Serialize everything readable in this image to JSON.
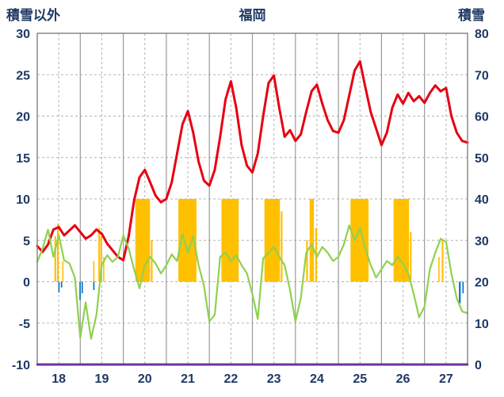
{
  "header": {
    "left_axis_title": "積雪以外",
    "station_title": "福岡",
    "right_axis_title": "積雪"
  },
  "chart_data": {
    "type": "line",
    "title": "福岡",
    "grid": true,
    "legend": "none",
    "left_axis": {
      "label": "積雪以外",
      "min": -10,
      "max": 30,
      "ticks": [
        30,
        25,
        20,
        15,
        10,
        5,
        0,
        -5,
        -10
      ]
    },
    "right_axis": {
      "label": "積雪",
      "min": 0,
      "max": 80,
      "ticks": [
        80,
        70,
        60,
        50,
        40,
        30,
        20,
        10,
        0
      ]
    },
    "x_axis": {
      "min": 18,
      "max": 28,
      "day_labels": [
        "18",
        "19",
        "20",
        "21",
        "22",
        "23",
        "24",
        "25",
        "26",
        "27"
      ],
      "solid_gridlines_days": [
        19,
        20,
        21,
        22,
        23,
        24,
        25,
        26,
        27
      ],
      "dashed_gridlines_days": [
        18.5,
        19.5,
        20.5,
        21.5,
        22.5,
        23.5,
        24.5,
        25.5,
        26.5,
        27.5
      ]
    },
    "colors": {
      "red": "#e60012",
      "green": "#8fd14f",
      "orange": "#ffc000",
      "blue": "#0070c0",
      "purple": "#7030a0",
      "grid_solid": "#9a9a9a",
      "grid_dashed": "#b3b3b3",
      "frame": "#808080",
      "text": "#1f3864",
      "background": "#ffffff"
    },
    "series": [
      {
        "name": "temperature-red",
        "axis": "left",
        "color_key": "red",
        "x_start": 18,
        "x_step": 0.125,
        "values": [
          4.3,
          3.6,
          4.5,
          6.3,
          6.6,
          5.6,
          6.2,
          6.8,
          6.0,
          5.2,
          5.6,
          6.3,
          5.8,
          4.6,
          3.8,
          3.0,
          2.6,
          5.5,
          9.8,
          12.6,
          13.5,
          12.0,
          10.4,
          9.6,
          10.0,
          12.0,
          15.5,
          19.0,
          20.6,
          18.0,
          14.5,
          12.2,
          11.6,
          13.5,
          17.5,
          22.0,
          24.2,
          21.0,
          16.5,
          14.0,
          13.2,
          15.5,
          20.0,
          24.0,
          24.9,
          21.0,
          17.5,
          18.3,
          17.0,
          17.8,
          20.5,
          23.0,
          23.8,
          21.5,
          19.5,
          18.2,
          18.0,
          19.5,
          22.5,
          25.5,
          26.6,
          23.5,
          20.5,
          18.5,
          16.5,
          18.0,
          21.0,
          22.6,
          21.5,
          22.8,
          21.8,
          22.4,
          21.6,
          22.8,
          23.7,
          23.0,
          23.4,
          20.0,
          18.0,
          17.0,
          16.8
        ]
      },
      {
        "name": "secondary-green",
        "axis": "left",
        "color_key": "green",
        "x_start": 18,
        "x_step": 0.125,
        "values": [
          2.4,
          4.0,
          6.3,
          3.0,
          5.6,
          2.6,
          2.2,
          0.5,
          -6.8,
          -2.5,
          -6.9,
          -4.0,
          2.0,
          3.2,
          2.4,
          3.0,
          5.6,
          4.0,
          1.5,
          -0.8,
          2.0,
          3.0,
          2.2,
          1.0,
          2.0,
          3.3,
          2.5,
          5.8,
          3.5,
          5.5,
          2.0,
          -0.5,
          -4.8,
          -4.0,
          3.0,
          3.5,
          2.5,
          3.2,
          2.0,
          1.0,
          -1.5,
          -4.5,
          2.8,
          3.5,
          4.2,
          3.0,
          2.0,
          -1.0,
          -4.8,
          -2.0,
          3.5,
          4.5,
          3.0,
          4.2,
          3.5,
          2.5,
          3.0,
          4.5,
          6.8,
          5.0,
          6.5,
          4.0,
          2.0,
          0.5,
          1.5,
          2.5,
          2.0,
          3.0,
          2.2,
          1.0,
          -1.5,
          -4.3,
          -3.0,
          1.5,
          3.5,
          5.2,
          4.8,
          1.0,
          -2.0,
          -3.6,
          -3.8
        ]
      }
    ],
    "bars": [
      {
        "name": "sunshine-orange-bars",
        "axis": "left",
        "color_key": "orange",
        "items": [
          {
            "x": 18.4,
            "w": 0.04,
            "h": 5.5
          },
          {
            "x": 18.46,
            "w": 0.04,
            "h": 7.0
          },
          {
            "x": 18.58,
            "w": 0.03,
            "h": 2.5
          },
          {
            "x": 19.3,
            "w": 0.03,
            "h": 2.5
          },
          {
            "x": 19.42,
            "w": 0.04,
            "h": 6.5
          },
          {
            "x": 19.47,
            "w": 0.04,
            "h": 5.5
          },
          {
            "x": 19.53,
            "w": 0.03,
            "h": 3.0
          },
          {
            "x": 20.28,
            "w": 0.34,
            "h": 10.0
          },
          {
            "x": 20.64,
            "w": 0.04,
            "h": 5.0
          },
          {
            "x": 21.28,
            "w": 0.42,
            "h": 10.0
          },
          {
            "x": 22.28,
            "w": 0.4,
            "h": 10.0
          },
          {
            "x": 23.28,
            "w": 0.36,
            "h": 10.0
          },
          {
            "x": 23.66,
            "w": 0.04,
            "h": 8.5
          },
          {
            "x": 24.25,
            "w": 0.04,
            "h": 5.0
          },
          {
            "x": 24.33,
            "w": 0.1,
            "h": 10.0
          },
          {
            "x": 24.46,
            "w": 0.04,
            "h": 6.5
          },
          {
            "x": 25.28,
            "w": 0.42,
            "h": 10.0
          },
          {
            "x": 26.28,
            "w": 0.36,
            "h": 10.0
          },
          {
            "x": 26.66,
            "w": 0.04,
            "h": 6.0
          },
          {
            "x": 27.32,
            "w": 0.03,
            "h": 3.0
          },
          {
            "x": 27.4,
            "w": 0.04,
            "h": 5.0
          }
        ]
      },
      {
        "name": "precipitation-blue-bars",
        "axis": "left",
        "color_key": "blue",
        "items": [
          {
            "x": 18.49,
            "w": 0.03,
            "h": -1.3
          },
          {
            "x": 18.55,
            "w": 0.03,
            "h": -0.7
          },
          {
            "x": 18.98,
            "w": 0.03,
            "h": -2.2
          },
          {
            "x": 19.03,
            "w": 0.03,
            "h": -1.4
          },
          {
            "x": 19.3,
            "w": 0.03,
            "h": -1.0
          },
          {
            "x": 27.8,
            "w": 0.04,
            "h": -2.6
          },
          {
            "x": 27.88,
            "w": 0.03,
            "h": -1.4
          }
        ]
      }
    ],
    "snow_line": {
      "name": "snow-depth-purple",
      "axis": "right",
      "color_key": "purple",
      "value": 0
    }
  }
}
